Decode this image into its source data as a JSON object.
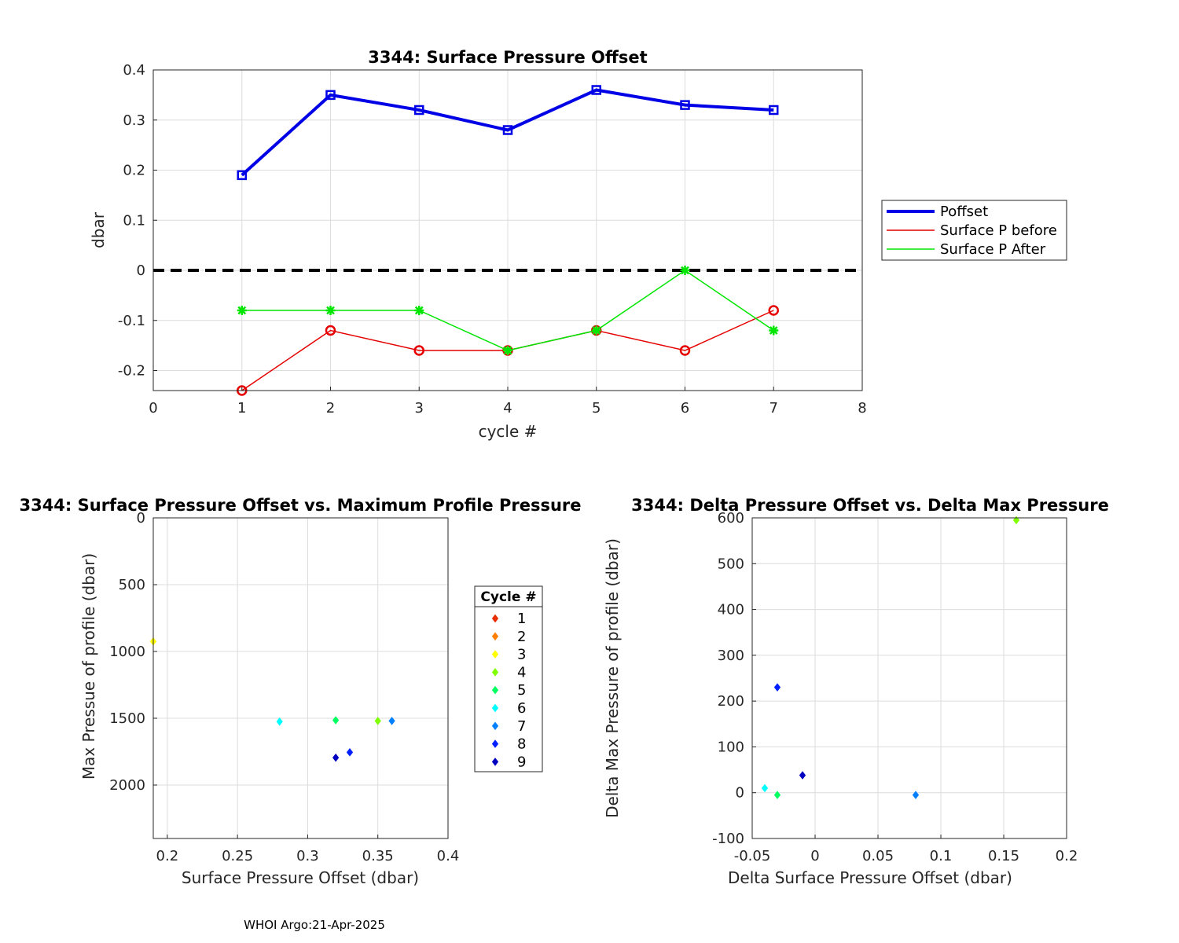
{
  "footer": "WHOI Argo:21-Apr-2025",
  "chart_data": [
    {
      "type": "line",
      "title": "3344: Surface Pressure Offset",
      "xlabel": "cycle #",
      "ylabel": "dbar",
      "xlim": [
        0,
        8
      ],
      "ylim": [
        -0.24,
        0.4
      ],
      "xticks": [
        0,
        1,
        2,
        3,
        4,
        5,
        6,
        7,
        8
      ],
      "yticks": [
        -0.2,
        -0.1,
        0,
        0.1,
        0.2,
        0.3,
        0.4
      ],
      "xtick_labels": [
        "0",
        "1",
        "2",
        "3",
        "4",
        "5",
        "6",
        "7",
        "8"
      ],
      "ytick_labels": [
        "-0.2",
        "-0.1",
        "0",
        "0.1",
        "0.2",
        "0.3",
        "0.4"
      ],
      "grid": true,
      "legend_position": "outside-right",
      "zero_line": {
        "y": 0,
        "color": "#000000",
        "style": "dashed"
      },
      "x": [
        1,
        2,
        3,
        4,
        5,
        6,
        7
      ],
      "series": [
        {
          "name": "Poffset",
          "color": "#0000e6",
          "marker": "square",
          "values": [
            0.19,
            0.35,
            0.32,
            0.28,
            0.36,
            0.33,
            0.32
          ]
        },
        {
          "name": "Surface P before",
          "color": "#e60000",
          "marker": "circle",
          "values": [
            -0.24,
            -0.12,
            -0.16,
            -0.16,
            -0.12,
            -0.16,
            -0.08
          ]
        },
        {
          "name": "Surface P After",
          "color": "#00e600",
          "marker": "star",
          "values": [
            -0.08,
            -0.08,
            -0.08,
            -0.16,
            -0.12,
            0.0,
            -0.12
          ]
        }
      ]
    },
    {
      "type": "scatter",
      "title": "3344: Surface Pressure Offset vs. Maximum Profile Pressure",
      "xlabel": "Surface Pressure Offset (dbar)",
      "ylabel": "Max Pressue of profile (dbar)",
      "xlim": [
        0.19,
        0.4
      ],
      "ylim": [
        0,
        2400
      ],
      "y_reversed": true,
      "xticks": [
        0.2,
        0.25,
        0.3,
        0.35,
        0.4
      ],
      "yticks": [
        0,
        500,
        1000,
        1500,
        2000
      ],
      "xtick_labels": [
        "0.2",
        "0.25",
        "0.3",
        "0.35",
        "0.4"
      ],
      "ytick_labels": [
        "0",
        "500",
        "1000",
        "1500",
        "2000"
      ],
      "grid": true,
      "legend_title": "Cycle #",
      "legend_position": "outside-right",
      "legend_entries": [
        {
          "label": "1",
          "color": "#e62e00"
        },
        {
          "label": "2",
          "color": "#ff8000"
        },
        {
          "label": "3",
          "color": "#ffff00"
        },
        {
          "label": "4",
          "color": "#7fff00"
        },
        {
          "label": "5",
          "color": "#00ff60"
        },
        {
          "label": "6",
          "color": "#00ffff"
        },
        {
          "label": "7",
          "color": "#0080ff"
        },
        {
          "label": "8",
          "color": "#0020ff"
        },
        {
          "label": "9",
          "color": "#0000c0"
        }
      ],
      "points": [
        {
          "x": 0.19,
          "y": 925,
          "color": "#ffff00"
        },
        {
          "x": 0.35,
          "y": 1520,
          "color": "#7fff00"
        },
        {
          "x": 0.32,
          "y": 1515,
          "color": "#00ff60"
        },
        {
          "x": 0.28,
          "y": 1525,
          "color": "#00ffff"
        },
        {
          "x": 0.36,
          "y": 1520,
          "color": "#0080ff"
        },
        {
          "x": 0.33,
          "y": 1755,
          "color": "#0020ff"
        },
        {
          "x": 0.32,
          "y": 1795,
          "color": "#0000c0"
        }
      ]
    },
    {
      "type": "scatter",
      "title": "3344: Delta Pressure Offset vs. Delta Max Pressure",
      "xlabel": "Delta Surface Pressure Offset (dbar)",
      "ylabel": "Delta Max Pressure of profile (dbar)",
      "xlim": [
        -0.05,
        0.2
      ],
      "ylim": [
        -100,
        600
      ],
      "xticks": [
        -0.05,
        0,
        0.05,
        0.1,
        0.15,
        0.2
      ],
      "yticks": [
        -100,
        0,
        100,
        200,
        300,
        400,
        500,
        600
      ],
      "xtick_labels": [
        "-0.05",
        "0",
        "0.05",
        "0.1",
        "0.15",
        "0.2"
      ],
      "ytick_labels": [
        "-100",
        "0",
        "100",
        "200",
        "300",
        "400",
        "500",
        "600"
      ],
      "grid": true,
      "points": [
        {
          "x": 0.16,
          "y": 595,
          "color": "#7fff00"
        },
        {
          "x": -0.03,
          "y": -5,
          "color": "#00ff60"
        },
        {
          "x": -0.04,
          "y": 10,
          "color": "#00ffff"
        },
        {
          "x": 0.08,
          "y": -5,
          "color": "#0080ff"
        },
        {
          "x": -0.03,
          "y": 230,
          "color": "#0020ff"
        },
        {
          "x": -0.01,
          "y": 38,
          "color": "#0000c0"
        }
      ]
    }
  ]
}
